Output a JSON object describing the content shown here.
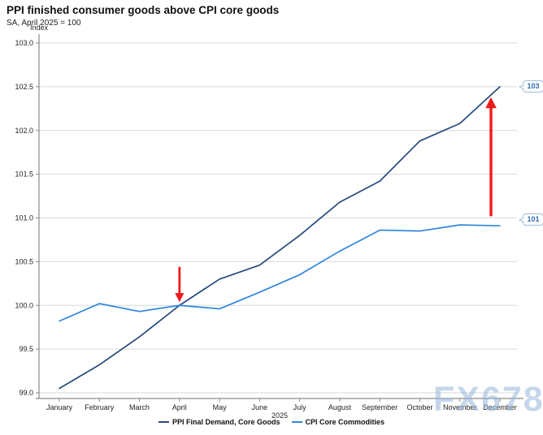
{
  "header": {
    "title": "PPI finished consumer goods above CPI core goods",
    "subtitle": "SA, April 2025 = 100"
  },
  "watermark": "FX678",
  "colors": {
    "ppi_line": "#254a7d",
    "cpi_line": "#2e86dd",
    "arrow_red": "#ee1b1b",
    "gridline": "#d9d9d9",
    "axis": "#8a8a8a",
    "tick_text": "#222222",
    "callout_border": "#9fbcdd",
    "callout_text": "#2f6cb3"
  },
  "chart_data": {
    "type": "line",
    "title": "PPI finished consumer goods above CPI core goods",
    "subtitle": "SA, April 2025 = 100",
    "ylabel": "Index",
    "x_axis_year": "2025",
    "categories": [
      "January",
      "February",
      "March",
      "April",
      "May",
      "June",
      "July",
      "August",
      "September",
      "October",
      "November",
      "December"
    ],
    "ylim": [
      99.0,
      103.0
    ],
    "ytick_labels": [
      "103.0",
      "102.5",
      "102.0",
      "101.5",
      "101.0",
      "100.5",
      "100.0",
      "99.5",
      "99.0"
    ],
    "grid": true,
    "legend_position": "bottom",
    "series": [
      {
        "name": "PPI Final Demand, Core Goods",
        "color": "#254a7d",
        "values": [
          99.05,
          99.32,
          99.64,
          100.0,
          100.3,
          100.46,
          100.8,
          101.18,
          101.42,
          101.88,
          102.08,
          102.5
        ],
        "end_label": "103"
      },
      {
        "name": "CPI Core Commodities",
        "color": "#2e86dd",
        "values": [
          99.82,
          100.02,
          99.93,
          100.0,
          99.96,
          100.15,
          100.35,
          100.62,
          100.86,
          100.85,
          100.92,
          100.91
        ],
        "end_label": "101"
      }
    ],
    "annotations": [
      {
        "id": "april-crossing-arrow",
        "direction": "down",
        "month": "April",
        "from": 100.44,
        "to": 100.12
      },
      {
        "id": "december-gap-arrow",
        "direction": "up",
        "month": "December",
        "from": 101.02,
        "to": 102.28
      }
    ]
  }
}
